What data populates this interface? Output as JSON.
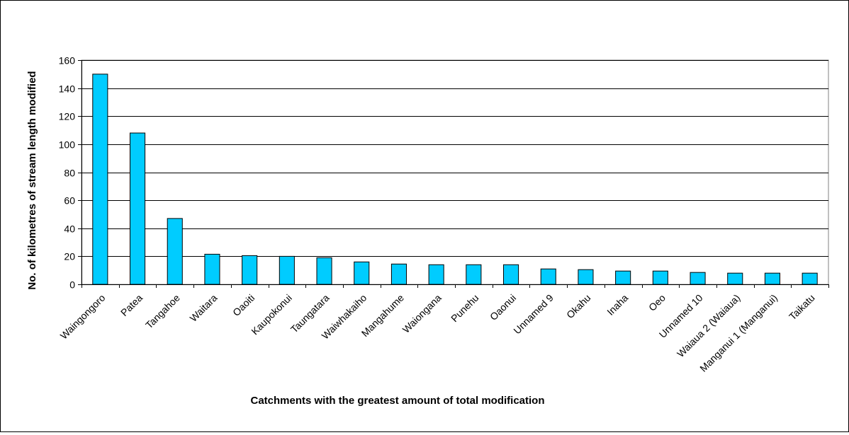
{
  "chart_data": {
    "type": "bar",
    "title": "",
    "xlabel": "Catchments with the greatest amount of total modification",
    "ylabel": "No. of kilometres of stream length modified",
    "ylim": [
      0,
      160
    ],
    "yticks": [
      0,
      20,
      40,
      60,
      80,
      100,
      120,
      140,
      160
    ],
    "grid": true,
    "bar_color": "#00CCFF",
    "categories": [
      "Waingongoro",
      "Patea",
      "Tangahoe",
      "Waitara",
      "Oaoiti",
      "Kaupokonui",
      "Taungatara",
      "Waiwhakaiho",
      "Mangahume",
      "Waiongana",
      "Punehu",
      "Oaonui",
      "Unnamed 9",
      "Okahu",
      "Inaha",
      "Oeo",
      "Unnamed 10",
      "Waiaua 2 (Waiaua)",
      "Manganui 1 (Manganui)",
      "Taikatu"
    ],
    "values": [
      150,
      108,
      47,
      21.5,
      20.5,
      20,
      19,
      16,
      14.5,
      14,
      14,
      14,
      11,
      10.5,
      9.5,
      9.5,
      8.5,
      8,
      8,
      8
    ]
  }
}
